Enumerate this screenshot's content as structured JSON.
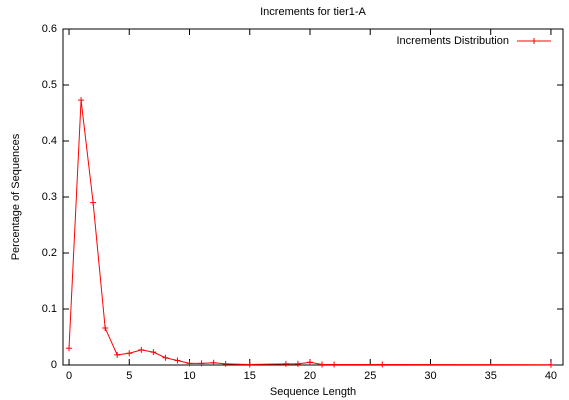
{
  "chart_data": {
    "type": "line",
    "title": "Increments for tier1-A",
    "x_label": "Sequence Length",
    "y_label": "Percentage of Sequences",
    "x": [
      0,
      1,
      2,
      3,
      4,
      5,
      6,
      7,
      8,
      9,
      10,
      11,
      12,
      13,
      15,
      18,
      19,
      20,
      21,
      22,
      26,
      40
    ],
    "series": [
      {
        "name": "Increments Distribution",
        "color": "#ff0000",
        "values": [
          0.03,
          0.473,
          0.29,
          0.066,
          0.018,
          0.021,
          0.027,
          0.023,
          0.013,
          0.008,
          0.003,
          0.003,
          0.004,
          0.002,
          0.001,
          0.002,
          0.002,
          0.005,
          0.001,
          0.001,
          0.001,
          0.0005
        ]
      }
    ],
    "xlim": [
      -0.5,
      41
    ],
    "ylim": [
      0,
      0.6
    ],
    "xticks": [
      0,
      5,
      10,
      15,
      20,
      25,
      30,
      35,
      40
    ],
    "yticks": [
      0,
      0.1,
      0.2,
      0.3,
      0.4,
      0.5,
      0.6
    ],
    "legend": "top-right"
  }
}
